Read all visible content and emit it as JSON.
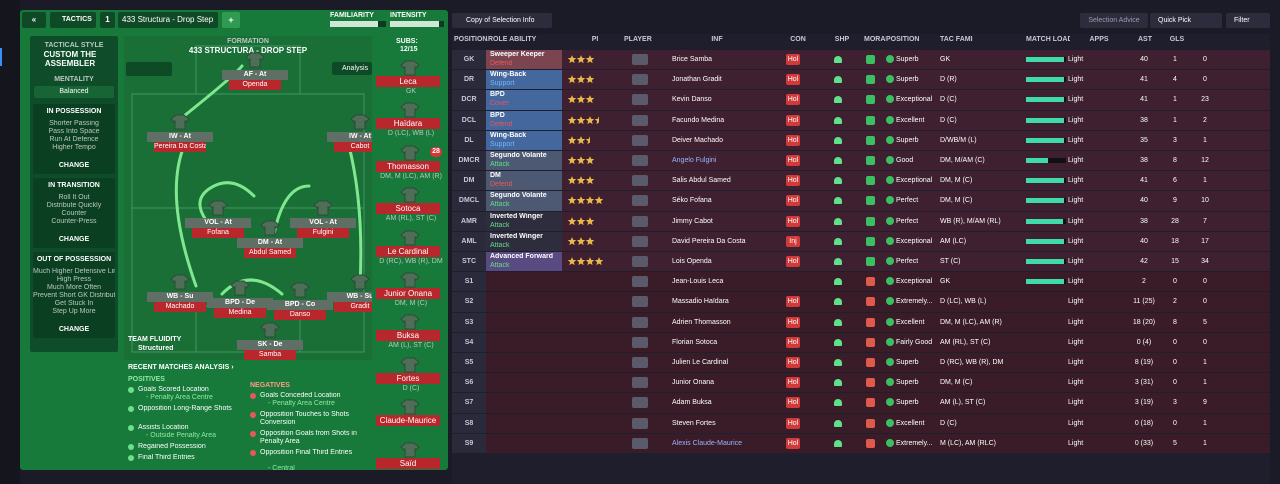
{
  "nav": {
    "copy_selection": "Copy of Selection Info",
    "selection_advice": "Selection Advice",
    "quick_pick": "Quick Pick",
    "filter": "Filter"
  },
  "tactics": {
    "back": "«",
    "label": "TACTICS",
    "slot": "1",
    "name": "433 Structura - Drop Step",
    "add": "+",
    "familiarity": "FAMILIARITY",
    "intensity": "INTENSITY",
    "familiarity_level": 85,
    "intensity_level": 90,
    "style_label": "TACTICAL STYLE",
    "style": "CUSTOM THE ASSEMBLER",
    "mentality_label": "MENTALITY",
    "mentality": "Balanced",
    "sections": [
      {
        "title": "IN POSSESSION",
        "items": [
          "Shorter Passing",
          "Pass Into Space",
          "Run At Defence",
          "Higher Tempo"
        ],
        "button": "CHANGE"
      },
      {
        "title": "IN TRANSITION",
        "items": [
          "Roll It Out",
          "Distribute Quickly",
          "Counter",
          "Counter-Press"
        ],
        "button": "CHANGE"
      },
      {
        "title": "OUT OF POSSESSION",
        "items": [
          "Much Higher Defensive Line",
          "High Press",
          "Much More Often",
          "Prevent Short GK Distribution",
          "Get Stuck In",
          "Step Up More"
        ],
        "button": "CHANGE"
      }
    ],
    "formation_label": "FORMATION",
    "formation": "433 STRUCTURA - DROP STEP",
    "analysis_button": "Analysis",
    "players": [
      {
        "role": "AF - At",
        "name": "Openda"
      },
      {
        "role": "IW - At",
        "name": "Pereira Da Costa"
      },
      {
        "role": "IW - At",
        "name": "Cabot"
      },
      {
        "role": "VOL - At",
        "name": "Fofana"
      },
      {
        "role": "DM - At",
        "name": "Abdul Samed"
      },
      {
        "role": "VOL - At",
        "name": "Fulgini"
      },
      {
        "role": "WB - Su",
        "name": "Machado"
      },
      {
        "role": "BPD - De",
        "name": "Medina"
      },
      {
        "role": "BPD - Co",
        "name": "Danso"
      },
      {
        "role": "WB - Su",
        "name": "Gradit"
      },
      {
        "role": "SK - De",
        "name": "Samba"
      }
    ],
    "fluidity_label": "TEAM FLUIDITY",
    "fluidity": "Structured",
    "subs_label": "SUBS:",
    "subs_count": "12/15",
    "subs": [
      {
        "name": "Leca",
        "position": "GK"
      },
      {
        "name": "Haïdara",
        "position": "D (LC), WB (L)"
      },
      {
        "name": "Thomasson",
        "position": "DM, M (LC), AM (R)",
        "badge": "28"
      },
      {
        "name": "Sotoca",
        "position": "AM (RL), ST (C)"
      },
      {
        "name": "Le Cardinal",
        "position": "D (RC), WB (R), DM"
      },
      {
        "name": "Junior Onana",
        "position": "DM, M (C)"
      },
      {
        "name": "Buksa",
        "position": "AM (L), ST (C)"
      },
      {
        "name": "Fortes",
        "position": "D (C)"
      },
      {
        "name": "Claude-Maurice"
      },
      {
        "name": "Saïd"
      }
    ],
    "analysis": {
      "title": "RECENT MATCHES ANALYSIS ›",
      "positives_label": "POSITIVES",
      "positives": [
        {
          "text": "Goals Scored Location",
          "detail": "- Penalty Area Centre"
        },
        {
          "text": "Opposition Long-Range Shots"
        },
        {
          "text": "Assists Location",
          "detail": "- Outside Penalty Area"
        },
        {
          "text": "Regained Possession"
        },
        {
          "text": "Final Third Entries"
        }
      ],
      "negatives_label": "NEGATIVES",
      "negatives": [
        {
          "text": "Goals Conceded Location",
          "detail": "- Penalty Area Centre"
        },
        {
          "text": "Opposition Touches to Shots Conversion"
        },
        {
          "text": "Opposition Goals from Shots in Penalty Area"
        },
        {
          "text": "Opposition Final Third Entries",
          "detail": "- Central"
        }
      ]
    }
  },
  "selection": {
    "columns": [
      "POSITION/ROLE/DUTY",
      "ROLE ABILITY",
      "PI",
      "PLAYER",
      "INF",
      "CON",
      "SHP",
      "MORALE",
      "POSITION",
      "TAC FAMI",
      "MATCH LOAD",
      "APPS",
      "AST",
      "GLS"
    ],
    "duty_colors": {
      "Defend": "#e8585a",
      "Cover": "#e8585a",
      "Support": "#6fb6ff",
      "Attack": "#5fe08a"
    },
    "rows": [
      {
        "slot": "GK",
        "role": "Sweeper Keeper",
        "duty": "Defend",
        "color": "#7a4550",
        "ability": 3,
        "player": "Brice Samba",
        "inf": "Hol",
        "morale": "Superb",
        "position": "GK",
        "tac_fam": 95,
        "load": "Light",
        "apps": 40,
        "ast": 1,
        "gls": 0
      },
      {
        "slot": "DR",
        "role": "Wing-Back",
        "duty": "Support",
        "color": "#44679e",
        "ability": 3,
        "player": "Jonathan Gradit",
        "inf": "Hol",
        "morale": "Superb",
        "position": "D (R)",
        "tac_fam": 95,
        "load": "Light",
        "apps": 41,
        "ast": 4,
        "gls": 0
      },
      {
        "slot": "DCR",
        "role": "BPD",
        "duty": "Cover",
        "color": "#44679e",
        "ability": 3,
        "player": "Kevin Danso",
        "inf": "Hol",
        "morale": "Exceptional",
        "position": "D (C)",
        "tac_fam": 95,
        "load": "Light",
        "apps": 41,
        "ast": 1,
        "gls": 23
      },
      {
        "slot": "DCL",
        "role": "BPD",
        "duty": "Defend",
        "color": "#44679e",
        "ability": 3.5,
        "player": "Facundo Medina",
        "inf": "Hol",
        "morale": "Excellent",
        "position": "D (C)",
        "tac_fam": 95,
        "load": "Light",
        "apps": 38,
        "ast": 1,
        "gls": 2
      },
      {
        "slot": "DL",
        "role": "Wing-Back",
        "duty": "Support",
        "color": "#44679e",
        "ability": 2.5,
        "player": "Deiver Machado",
        "inf": "Hol",
        "morale": "Superb",
        "position": "D/WB/M (L)",
        "tac_fam": 95,
        "load": "Light",
        "apps": 35,
        "ast": 3,
        "gls": 1
      },
      {
        "slot": "DMCR",
        "role": "Segundo Volante",
        "duty": "Attack",
        "color": "#4d5873",
        "ability": 3,
        "player": "Angelo Fulgini",
        "inf": "Hol",
        "morale": "Good",
        "position": "DM, M/AM (C)",
        "tac_fam": 55,
        "load": "Light",
        "apps": 38,
        "ast": 8,
        "gls": 12
      },
      {
        "slot": "DM",
        "role": "DM",
        "duty": "Defend",
        "color": "#4d5873",
        "ability": 3,
        "player": "Salis Abdul Samed",
        "inf": "Hol",
        "morale": "Exceptional",
        "position": "DM, M (C)",
        "tac_fam": 95,
        "load": "Light",
        "apps": 41,
        "ast": 6,
        "gls": 1
      },
      {
        "slot": "DMCL",
        "role": "Segundo Volante",
        "duty": "Attack",
        "color": "#4d5873",
        "ability": 4,
        "player": "Séko Fofana",
        "inf": "Hol",
        "morale": "Perfect",
        "position": "DM, M (C)",
        "tac_fam": 95,
        "load": "Light",
        "apps": 40,
        "ast": 9,
        "gls": 10
      },
      {
        "slot": "AMR",
        "role": "Inverted Winger",
        "duty": "Attack",
        "color": "#2d2d3e",
        "ability": 3,
        "player": "Jimmy Cabot",
        "inf": "Hol",
        "morale": "Perfect",
        "position": "WB (R), M/AM (RL)",
        "tac_fam": 92,
        "load": "Light",
        "apps": 38,
        "ast": 28,
        "gls": 7
      },
      {
        "slot": "AML",
        "role": "Inverted Winger",
        "duty": "Attack",
        "color": "#2d2d3e",
        "ability": 3,
        "player": "David Pereira Da Costa",
        "inf": "Inj",
        "morale": "Exceptional",
        "position": "AM (LC)",
        "tac_fam": 95,
        "load": "Light",
        "apps": 40,
        "ast": 18,
        "gls": 17
      },
      {
        "slot": "STC",
        "role": "Advanced Forward",
        "duty": "Attack",
        "color": "#5a4a82",
        "ability": 4,
        "player": "Lois Openda",
        "inf": "Hol",
        "morale": "Perfect",
        "position": "ST (C)",
        "tac_fam": 95,
        "load": "Light",
        "apps": 42,
        "ast": 15,
        "gls": 34
      },
      {
        "slot": "S1",
        "player": "Jean-Louis Leca",
        "morale": "Exceptional",
        "position": "GK",
        "tac_fam": 95,
        "load": "Light",
        "apps": 2,
        "ast": 0,
        "gls": 0
      },
      {
        "slot": "S2",
        "player": "Massadio Haïdara",
        "inf": "Hol",
        "morale": "Extremely...",
        "position": "D (LC), WB (L)",
        "load": "Light",
        "apps": "11 (25)",
        "ast": 2,
        "gls": 0
      },
      {
        "slot": "S3",
        "player": "Adrien Thomasson",
        "inf": "Hol",
        "morale": "Excellent",
        "position": "DM, M (LC), AM (R)",
        "load": "Light",
        "apps": "18 (20)",
        "ast": 8,
        "gls": 5
      },
      {
        "slot": "S4",
        "player": "Florian Sotoca",
        "inf": "Hol",
        "morale": "Fairly Good",
        "position": "AM (RL), ST (C)",
        "load": "Light",
        "apps": "0 (4)",
        "ast": 0,
        "gls": 0
      },
      {
        "slot": "S5",
        "player": "Julien Le Cardinal",
        "inf": "Hol",
        "morale": "Superb",
        "position": "D (RC), WB (R), DM",
        "load": "Light",
        "apps": "8 (19)",
        "ast": 0,
        "gls": 1
      },
      {
        "slot": "S6",
        "player": "Junior Onana",
        "inf": "Hol",
        "morale": "Superb",
        "position": "DM, M (C)",
        "load": "Light",
        "apps": "3 (31)",
        "ast": 0,
        "gls": 1
      },
      {
        "slot": "S7",
        "player": "Adam Buksa",
        "inf": "Hol",
        "morale": "Superb",
        "position": "AM (L), ST (C)",
        "load": "Light",
        "apps": "3 (19)",
        "ast": 3,
        "gls": 9
      },
      {
        "slot": "S8",
        "player": "Steven Fortes",
        "inf": "Hol",
        "morale": "Excellent",
        "position": "D (C)",
        "load": "Light",
        "apps": "0 (18)",
        "ast": 0,
        "gls": 1
      },
      {
        "slot": "S9",
        "player": "Alexis Claude-Maurice",
        "inf": "Hol",
        "morale": "Extremely...",
        "position": "M (LC), AM (RLC)",
        "load": "Light",
        "apps": "0 (33)",
        "ast": 5,
        "gls": 1
      }
    ]
  }
}
